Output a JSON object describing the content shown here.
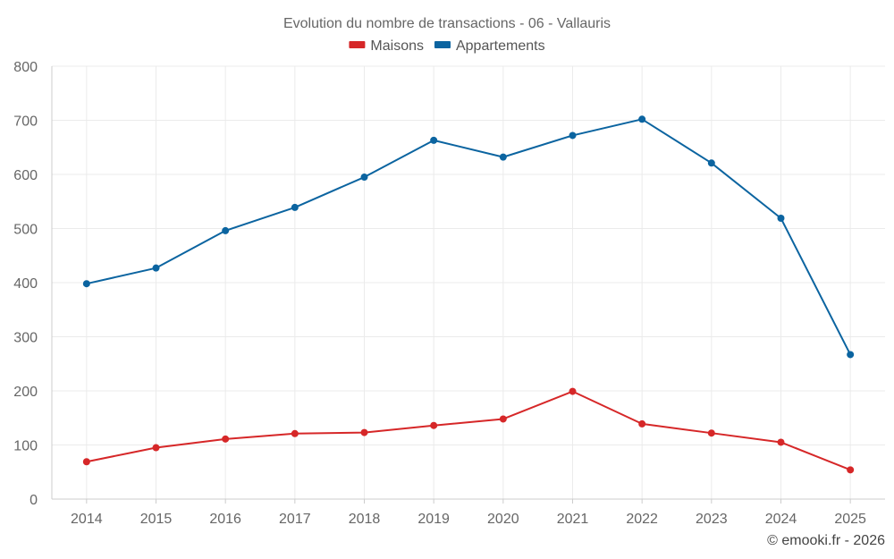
{
  "chart_data": {
    "type": "line",
    "title": "Evolution du nombre de transactions - 06 - Vallauris",
    "categories": [
      "2014",
      "2015",
      "2016",
      "2017",
      "2018",
      "2019",
      "2020",
      "2021",
      "2022",
      "2023",
      "2024",
      "2025"
    ],
    "series": [
      {
        "name": "Maisons",
        "color": "#d62728",
        "values": [
          69,
          95,
          111,
          121,
          123,
          136,
          148,
          199,
          139,
          122,
          105,
          54
        ]
      },
      {
        "name": "Appartements",
        "color": "#0b64a0",
        "values": [
          398,
          427,
          496,
          539,
          595,
          663,
          632,
          672,
          702,
          621,
          519,
          267
        ]
      }
    ],
    "ylim": [
      0,
      800
    ],
    "yticks": [
      0,
      100,
      200,
      300,
      400,
      500,
      600,
      700,
      800
    ],
    "xlabel": "",
    "ylabel": "",
    "grid": true,
    "legend": "top-center"
  },
  "credit": "© emooki.fr - 2026"
}
